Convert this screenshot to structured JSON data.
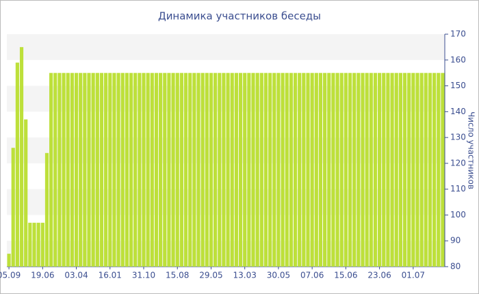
{
  "chart_data": {
    "type": "bar",
    "title": "Динамика участников беседы",
    "y_label": "Число участников",
    "categories": [
      "05.09",
      null,
      null,
      null,
      null,
      null,
      null,
      null,
      "19.06",
      null,
      null,
      null,
      null,
      null,
      null,
      null,
      "03.04",
      null,
      null,
      null,
      null,
      null,
      null,
      null,
      "16.01",
      null,
      null,
      null,
      null,
      null,
      null,
      null,
      "31.10",
      null,
      null,
      null,
      null,
      null,
      null,
      null,
      "15.08",
      null,
      null,
      null,
      null,
      null,
      null,
      null,
      "29.05",
      null,
      null,
      null,
      null,
      null,
      null,
      null,
      "13.03",
      null,
      null,
      null,
      null,
      null,
      null,
      null,
      "30.05",
      null,
      null,
      null,
      null,
      null,
      null,
      null,
      "07.06",
      null,
      null,
      null,
      null,
      null,
      null,
      null,
      "15.06",
      null,
      null,
      null,
      null,
      null,
      null,
      null,
      "23.06",
      null,
      null,
      null,
      null,
      null,
      null,
      null,
      "01.07",
      null,
      null,
      null,
      null,
      null,
      null,
      null
    ],
    "values": [
      85,
      126,
      159,
      165,
      137,
      97,
      97,
      97,
      97,
      124,
      155,
      155,
      155,
      155,
      155,
      155,
      155,
      155,
      155,
      155,
      155,
      155,
      155,
      155,
      155,
      155,
      155,
      155,
      155,
      155,
      155,
      155,
      155,
      155,
      155,
      155,
      155,
      155,
      155,
      155,
      155,
      155,
      155,
      155,
      155,
      155,
      155,
      155,
      155,
      155,
      155,
      155,
      155,
      155,
      155,
      155,
      155,
      155,
      155,
      155,
      155,
      155,
      155,
      155,
      155,
      155,
      155,
      155,
      155,
      155,
      155,
      155,
      155,
      155,
      155,
      155,
      155,
      155,
      155,
      155,
      155,
      155,
      155,
      155,
      155,
      155,
      155,
      155,
      155,
      155,
      155,
      155,
      155,
      155,
      155,
      155,
      155,
      155,
      155,
      155,
      155,
      155,
      155,
      155
    ],
    "color": "#bde03a",
    "ylim": [
      80,
      170
    ],
    "yticks": [
      80,
      90,
      100,
      110,
      120,
      130,
      140,
      150,
      160,
      170
    ],
    "grid": "bands",
    "y_axis_side": "right"
  }
}
